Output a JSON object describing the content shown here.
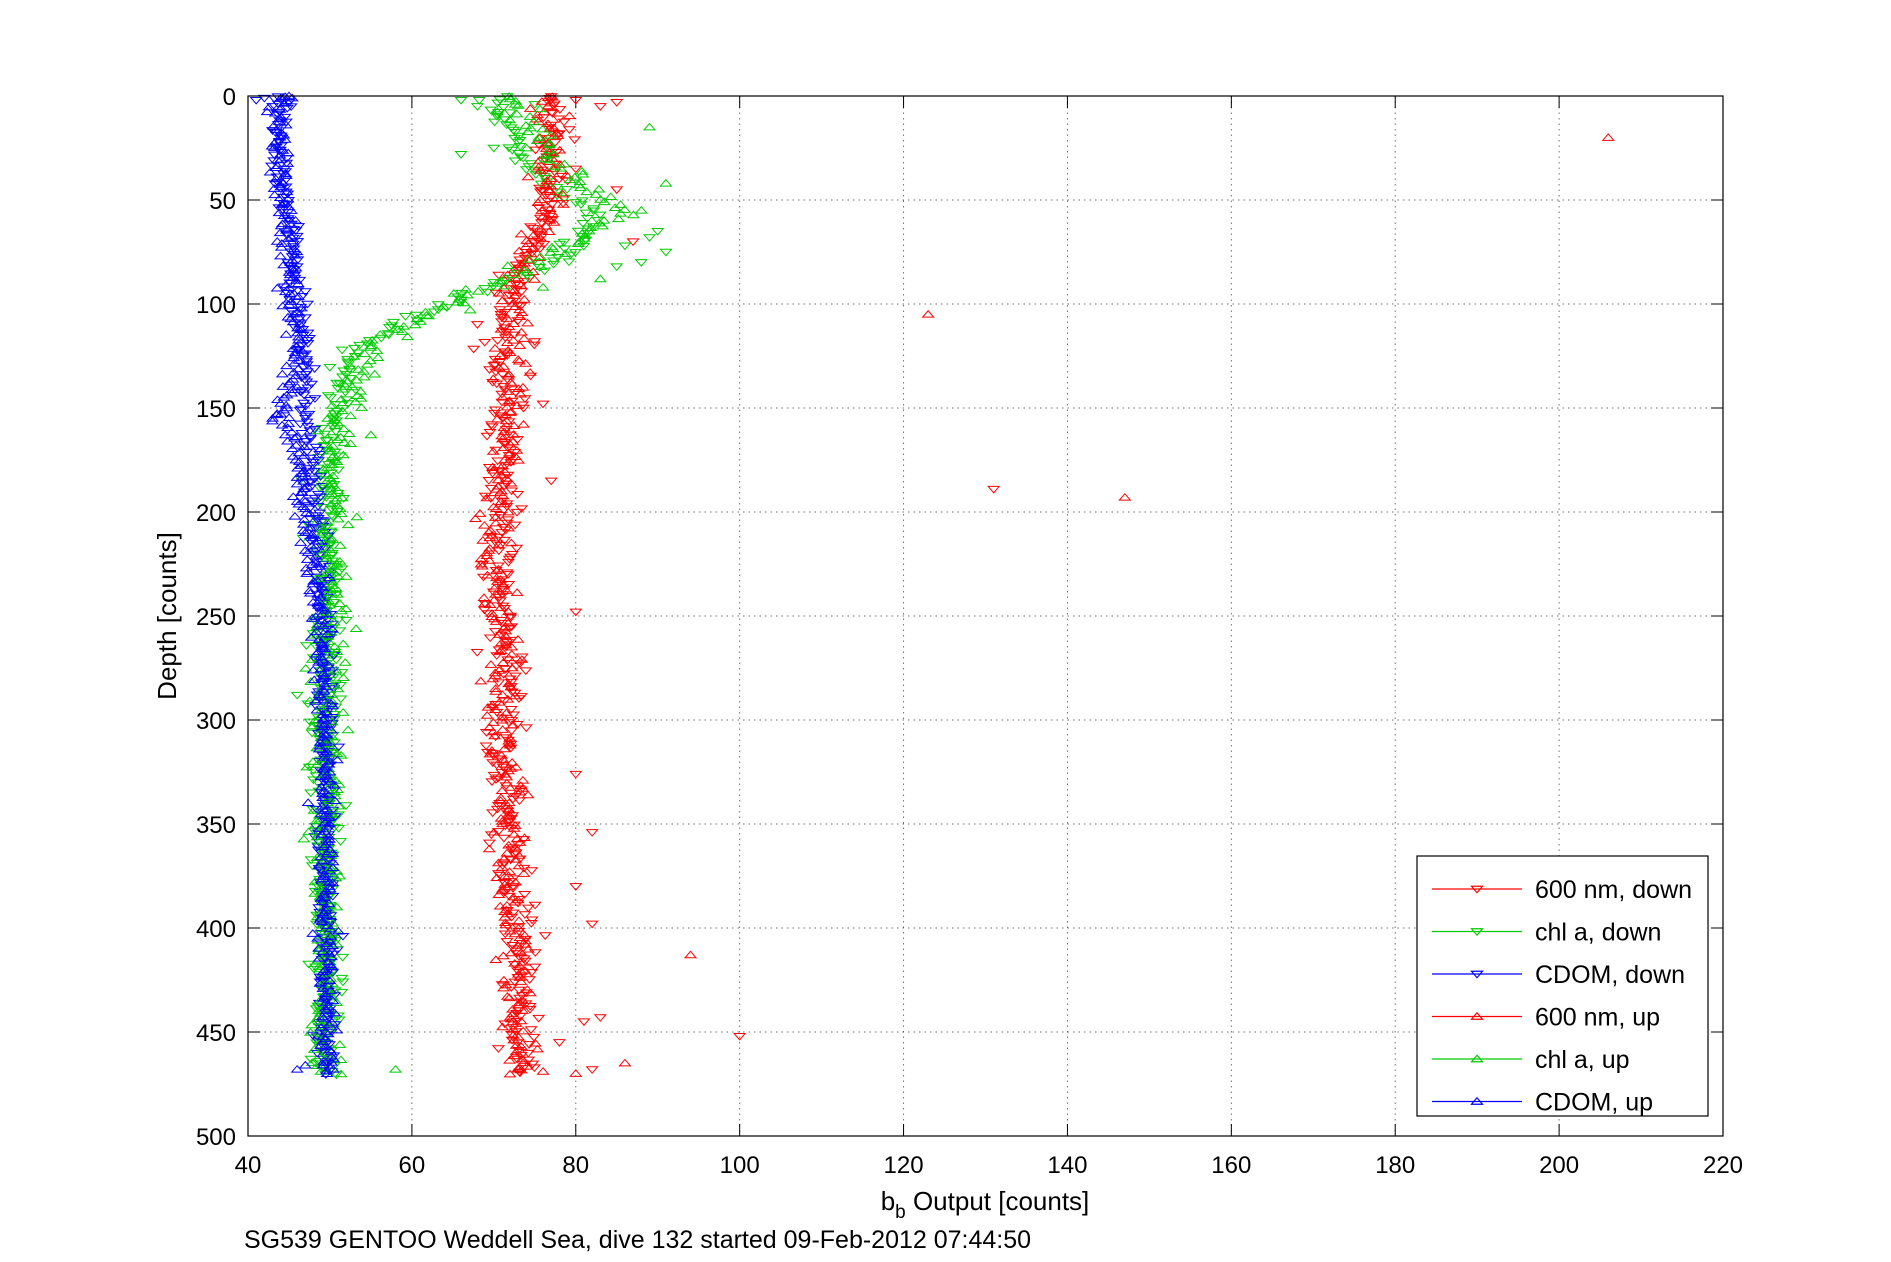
{
  "chart_data": {
    "type": "scatter",
    "xlabel_main": "b",
    "xlabel_sub": "b",
    "xlabel_rest": " Output [counts]",
    "ylabel": "Depth [counts]",
    "caption": "SG539 GENTOO Weddell Sea, dive 132 started 09-Feb-2012 07:44:50",
    "xlim": [
      40,
      220
    ],
    "ylim": [
      0,
      500
    ],
    "y_reversed": true,
    "grid": true,
    "x_ticks": [
      "40",
      "60",
      "80",
      "100",
      "120",
      "140",
      "160",
      "180",
      "200",
      "220"
    ],
    "y_ticks": [
      "0",
      "50",
      "100",
      "150",
      "200",
      "250",
      "300",
      "350",
      "400",
      "450",
      "500"
    ],
    "legend_position": "bottom-right",
    "series": [
      {
        "name": "600 nm, down",
        "color": "#ff0000",
        "marker": "triangle-down",
        "profile": [
          [
            0,
            77
          ],
          [
            30,
            78
          ],
          [
            60,
            76
          ],
          [
            90,
            72
          ],
          [
            110,
            71
          ],
          [
            140,
            72
          ],
          [
            170,
            71
          ],
          [
            200,
            71
          ],
          [
            240,
            71
          ],
          [
            280,
            72
          ],
          [
            320,
            71
          ],
          [
            360,
            72
          ],
          [
            400,
            73
          ],
          [
            440,
            73
          ],
          [
            470,
            74
          ]
        ],
        "spread": 2.2,
        "points": [
          [
            80,
            2
          ],
          [
            85,
            3
          ],
          [
            83,
            5
          ],
          [
            78,
            18
          ],
          [
            80,
            35
          ],
          [
            85,
            45
          ],
          [
            87,
            70
          ],
          [
            75,
            118
          ],
          [
            76,
            148
          ],
          [
            77,
            185
          ],
          [
            80,
            248
          ],
          [
            80,
            326
          ],
          [
            82,
            354
          ],
          [
            80,
            380
          ],
          [
            82,
            398
          ],
          [
            81,
            445
          ],
          [
            83,
            443
          ],
          [
            78,
            455
          ],
          [
            100,
            452
          ],
          [
            131,
            189
          ],
          [
            82,
            468
          ]
        ]
      },
      {
        "name": "chl a, down",
        "color": "#00cc00",
        "marker": "triangle-down",
        "profile": [
          [
            0,
            70
          ],
          [
            20,
            72
          ],
          [
            40,
            76
          ],
          [
            60,
            83
          ],
          [
            80,
            78
          ],
          [
            90,
            70
          ],
          [
            100,
            65
          ],
          [
            110,
            58
          ],
          [
            120,
            54
          ],
          [
            130,
            52
          ],
          [
            145,
            51
          ],
          [
            160,
            50
          ],
          [
            180,
            50
          ],
          [
            220,
            50
          ],
          [
            300,
            49.5
          ],
          [
            400,
            49.5
          ],
          [
            470,
            49.5
          ]
        ],
        "spread": 2.0,
        "points": [
          [
            66,
            2
          ],
          [
            68,
            5
          ],
          [
            72,
            8
          ],
          [
            75,
            4
          ],
          [
            66,
            28
          ],
          [
            70,
            25
          ],
          [
            91,
            75
          ],
          [
            88,
            80
          ],
          [
            89,
            68
          ],
          [
            90,
            65
          ],
          [
            86,
            72
          ],
          [
            85,
            82
          ],
          [
            46,
            288
          ],
          [
            48,
            270
          ],
          [
            52,
            252
          ]
        ]
      },
      {
        "name": "CDOM, down",
        "color": "#0000ff",
        "marker": "triangle-down",
        "profile": [
          [
            0,
            44
          ],
          [
            30,
            44
          ],
          [
            60,
            45
          ],
          [
            100,
            46
          ],
          [
            120,
            47
          ],
          [
            140,
            47
          ],
          [
            160,
            47
          ],
          [
            180,
            48
          ],
          [
            220,
            49
          ],
          [
            280,
            49.5
          ],
          [
            360,
            49.5
          ],
          [
            470,
            49.5
          ]
        ],
        "spread": 1.2,
        "points": [
          [
            41,
            2
          ],
          [
            43,
            5
          ],
          [
            42,
            1
          ],
          [
            45,
            3
          ],
          [
            46,
            82
          ],
          [
            47,
            94
          ]
        ]
      },
      {
        "name": "600 nm, up",
        "color": "#ff0000",
        "marker": "triangle-up",
        "profile": [
          [
            0,
            76
          ],
          [
            25,
            77
          ],
          [
            50,
            77
          ],
          [
            70,
            75
          ],
          [
            90,
            73
          ],
          [
            120,
            72
          ],
          [
            150,
            72
          ],
          [
            180,
            71
          ],
          [
            220,
            70
          ],
          [
            260,
            71
          ],
          [
            300,
            71
          ],
          [
            340,
            72
          ],
          [
            380,
            72
          ],
          [
            420,
            73
          ],
          [
            460,
            73
          ],
          [
            470,
            74
          ]
        ],
        "spread": 2.2,
        "points": [
          [
            206,
            20
          ],
          [
            123,
            105
          ],
          [
            147,
            193
          ],
          [
            94,
            413
          ],
          [
            86,
            465
          ],
          [
            80,
            470
          ],
          [
            76,
            469
          ],
          [
            73,
            468
          ]
        ]
      },
      {
        "name": "chl a, up",
        "color": "#00cc00",
        "marker": "triangle-up",
        "profile": [
          [
            0,
            73
          ],
          [
            20,
            75
          ],
          [
            40,
            80
          ],
          [
            55,
            86
          ],
          [
            70,
            80
          ],
          [
            85,
            72
          ],
          [
            95,
            68
          ],
          [
            105,
            63
          ],
          [
            115,
            57
          ],
          [
            125,
            54
          ],
          [
            135,
            53
          ],
          [
            150,
            52
          ],
          [
            165,
            51
          ],
          [
            190,
            50
          ],
          [
            230,
            50
          ],
          [
            300,
            49.5
          ],
          [
            400,
            49.5
          ],
          [
            470,
            49.5
          ]
        ],
        "spread": 2.0,
        "points": [
          [
            89,
            15
          ],
          [
            91,
            42
          ],
          [
            88,
            55
          ],
          [
            83,
            88
          ],
          [
            76,
            92
          ],
          [
            52,
            231
          ],
          [
            58,
            468
          ],
          [
            55,
            163
          ]
        ]
      },
      {
        "name": "CDOM, up",
        "color": "#0000ff",
        "marker": "triangle-up",
        "profile": [
          [
            0,
            44
          ],
          [
            40,
            44
          ],
          [
            80,
            45
          ],
          [
            120,
            46
          ],
          [
            140,
            45
          ],
          [
            155,
            44
          ],
          [
            170,
            46
          ],
          [
            200,
            47
          ],
          [
            230,
            48
          ],
          [
            260,
            49
          ],
          [
            320,
            49.5
          ],
          [
            400,
            49.5
          ],
          [
            470,
            49.5
          ]
        ],
        "spread": 1.2,
        "points": [
          [
            45,
            0
          ],
          [
            44,
            1
          ],
          [
            46,
            140
          ],
          [
            43,
            155
          ],
          [
            44,
            153
          ],
          [
            47,
            210
          ],
          [
            46,
            195
          ],
          [
            46,
            468
          ],
          [
            47,
            466
          ]
        ]
      }
    ]
  }
}
